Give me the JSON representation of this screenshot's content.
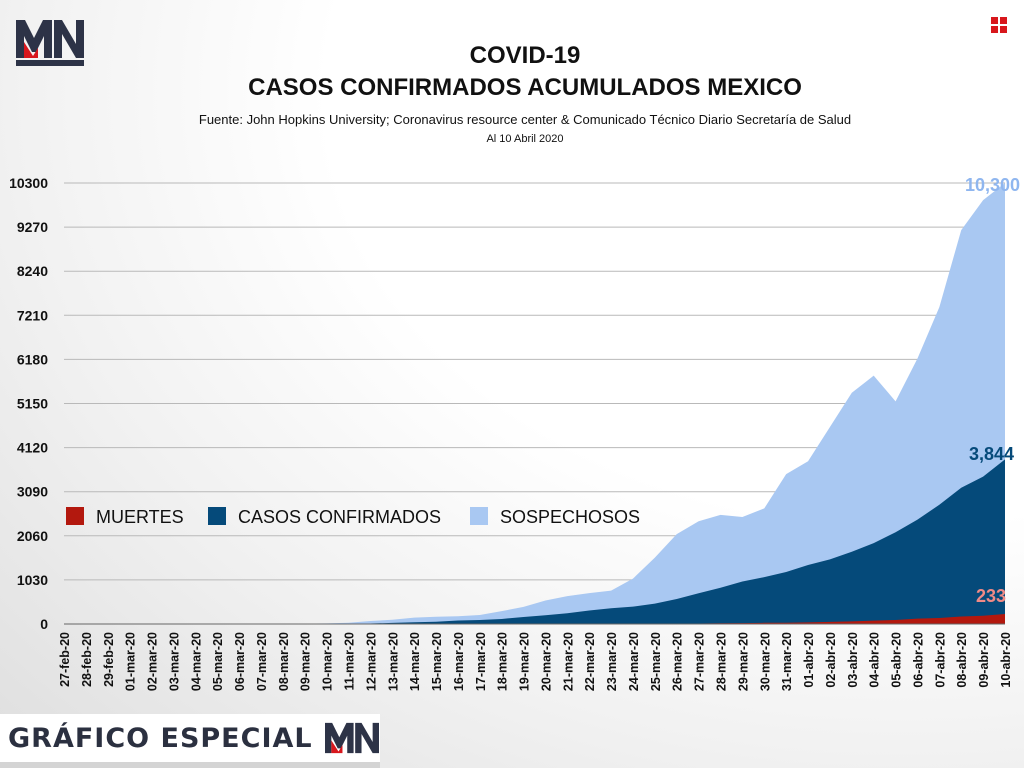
{
  "brand": {
    "logo_text": "MN",
    "footer_text": "GRÁFICO ESPECIAL"
  },
  "colors": {
    "deaths": "#b3180e",
    "confirmed": "#054a7a",
    "suspected": "#a9c8f2",
    "suspected_label": "#8fb6ef",
    "deaths_label": "#f08a86",
    "logo_red": "#d8171d",
    "logo_navy": "#2d3347"
  },
  "chart_data": {
    "type": "area",
    "title": "COVID-19",
    "subtitle": "CASOS CONFIRMADOS ACUMULADOS MEXICO",
    "source": "Fuente: John Hopkins University; Coronavirus resource center & Comunicado Técnico Diario Secretaría de Salud",
    "date_note": "Al 10 Abril 2020",
    "xlabel": "",
    "ylabel": "",
    "ylim": [
      0,
      10300
    ],
    "yticks": [
      0,
      1030,
      2060,
      3090,
      4120,
      5150,
      6180,
      7210,
      8240,
      9270,
      10300
    ],
    "grid": true,
    "legend_position": "middle-left",
    "categories": [
      "27-feb-20",
      "28-feb-20",
      "29-feb-20",
      "01-mar-20",
      "02-mar-20",
      "03-mar-20",
      "04-mar-20",
      "05-mar-20",
      "06-mar-20",
      "07-mar-20",
      "08-mar-20",
      "09-mar-20",
      "10-mar-20",
      "11-mar-20",
      "12-mar-20",
      "13-mar-20",
      "14-mar-20",
      "15-mar-20",
      "16-mar-20",
      "17-mar-20",
      "18-mar-20",
      "19-mar-20",
      "20-mar-20",
      "21-mar-20",
      "22-mar-20",
      "23-mar-20",
      "24-mar-20",
      "25-mar-20",
      "26-mar-20",
      "27-mar-20",
      "28-mar-20",
      "29-mar-20",
      "30-mar-20",
      "31-mar-20",
      "01-abr-20",
      "02-abr-20",
      "03-abr-20",
      "04-abr-20",
      "05-abr-20",
      "06-abr-20",
      "07-abr-20",
      "08-abr-20",
      "09-abr-20",
      "10-abr-20"
    ],
    "series": [
      {
        "name": "SOSPECHOSOS",
        "values": [
          2,
          3,
          4,
          5,
          5,
          5,
          6,
          6,
          7,
          7,
          7,
          9,
          15,
          30,
          70,
          100,
          150,
          170,
          180,
          210,
          300,
          400,
          550,
          650,
          720,
          780,
          1060,
          1550,
          2100,
          2400,
          2550,
          2500,
          2700,
          3500,
          3800,
          4600,
          5400,
          5800,
          5200,
          6200,
          7400,
          9200,
          9900,
          10300
        ]
      },
      {
        "name": "CASOS CONFIRMADOS",
        "values": [
          1,
          2,
          4,
          5,
          5,
          5,
          5,
          5,
          6,
          7,
          7,
          7,
          7,
          8,
          12,
          26,
          41,
          53,
          82,
          93,
          118,
          164,
          203,
          251,
          316,
          367,
          405,
          475,
          585,
          717,
          848,
          993,
          1094,
          1215,
          1378,
          1510,
          1688,
          1890,
          2143,
          2439,
          2785,
          3181,
          3441,
          3844
        ]
      },
      {
        "name": "MUERTES",
        "values": [
          0,
          0,
          0,
          0,
          0,
          0,
          0,
          0,
          0,
          0,
          0,
          0,
          0,
          0,
          0,
          0,
          0,
          0,
          0,
          0,
          0,
          1,
          1,
          2,
          2,
          4,
          5,
          6,
          8,
          12,
          16,
          20,
          28,
          29,
          37,
          50,
          60,
          79,
          94,
          125,
          141,
          174,
          194,
          233
        ]
      }
    ],
    "end_labels": {
      "suspected": "10,300",
      "confirmed": "3,844",
      "deaths": "233"
    }
  }
}
